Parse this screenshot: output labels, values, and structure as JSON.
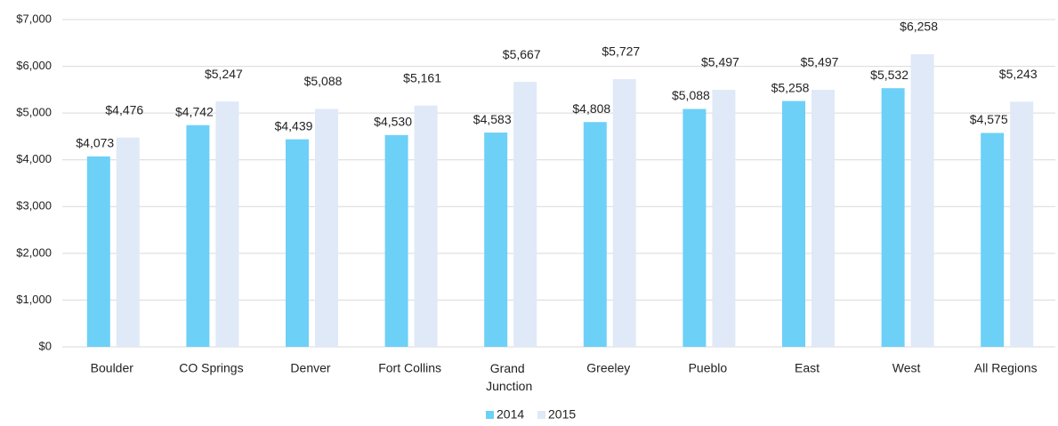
{
  "chart_data": {
    "type": "bar",
    "categories": [
      "Boulder",
      "CO Springs",
      "Denver",
      "Fort Collins",
      "Grand Junction",
      "Greeley",
      "Pueblo",
      "East",
      "West",
      "All Regions"
    ],
    "series": [
      {
        "name": "2014",
        "color": "#6dd0f7",
        "values": [
          4073,
          4742,
          4439,
          4530,
          4583,
          4808,
          5088,
          5258,
          5532,
          4575
        ],
        "value_labels": [
          "$4,073",
          "$4,742",
          "$4,439",
          "$4,530",
          "$4,583",
          "$4,808",
          "$5,088",
          "$5,258",
          "$5,532",
          "$4,575"
        ]
      },
      {
        "name": "2015",
        "color": "#dfe9f7",
        "values": [
          4476,
          5247,
          5088,
          5161,
          5667,
          5727,
          5497,
          5497,
          6258,
          5243
        ],
        "value_labels": [
          "$4,476",
          "$5,247",
          "$5,088",
          "$5,161",
          "$5,667",
          "$5,727",
          "$5,497",
          "$5,497",
          "$6,258",
          "$5,243"
        ]
      }
    ],
    "ylim": [
      0,
      7000
    ],
    "yticks": [
      {
        "value": 0,
        "label": "$0"
      },
      {
        "value": 1000,
        "label": "$1,000"
      },
      {
        "value": 2000,
        "label": "$2,000"
      },
      {
        "value": 3000,
        "label": "$3,000"
      },
      {
        "value": 4000,
        "label": "$4,000"
      },
      {
        "value": 5000,
        "label": "$5,000"
      },
      {
        "value": 6000,
        "label": "$6,000"
      },
      {
        "value": 7000,
        "label": "$7,000"
      }
    ],
    "grid": true,
    "legend": "bottom"
  }
}
